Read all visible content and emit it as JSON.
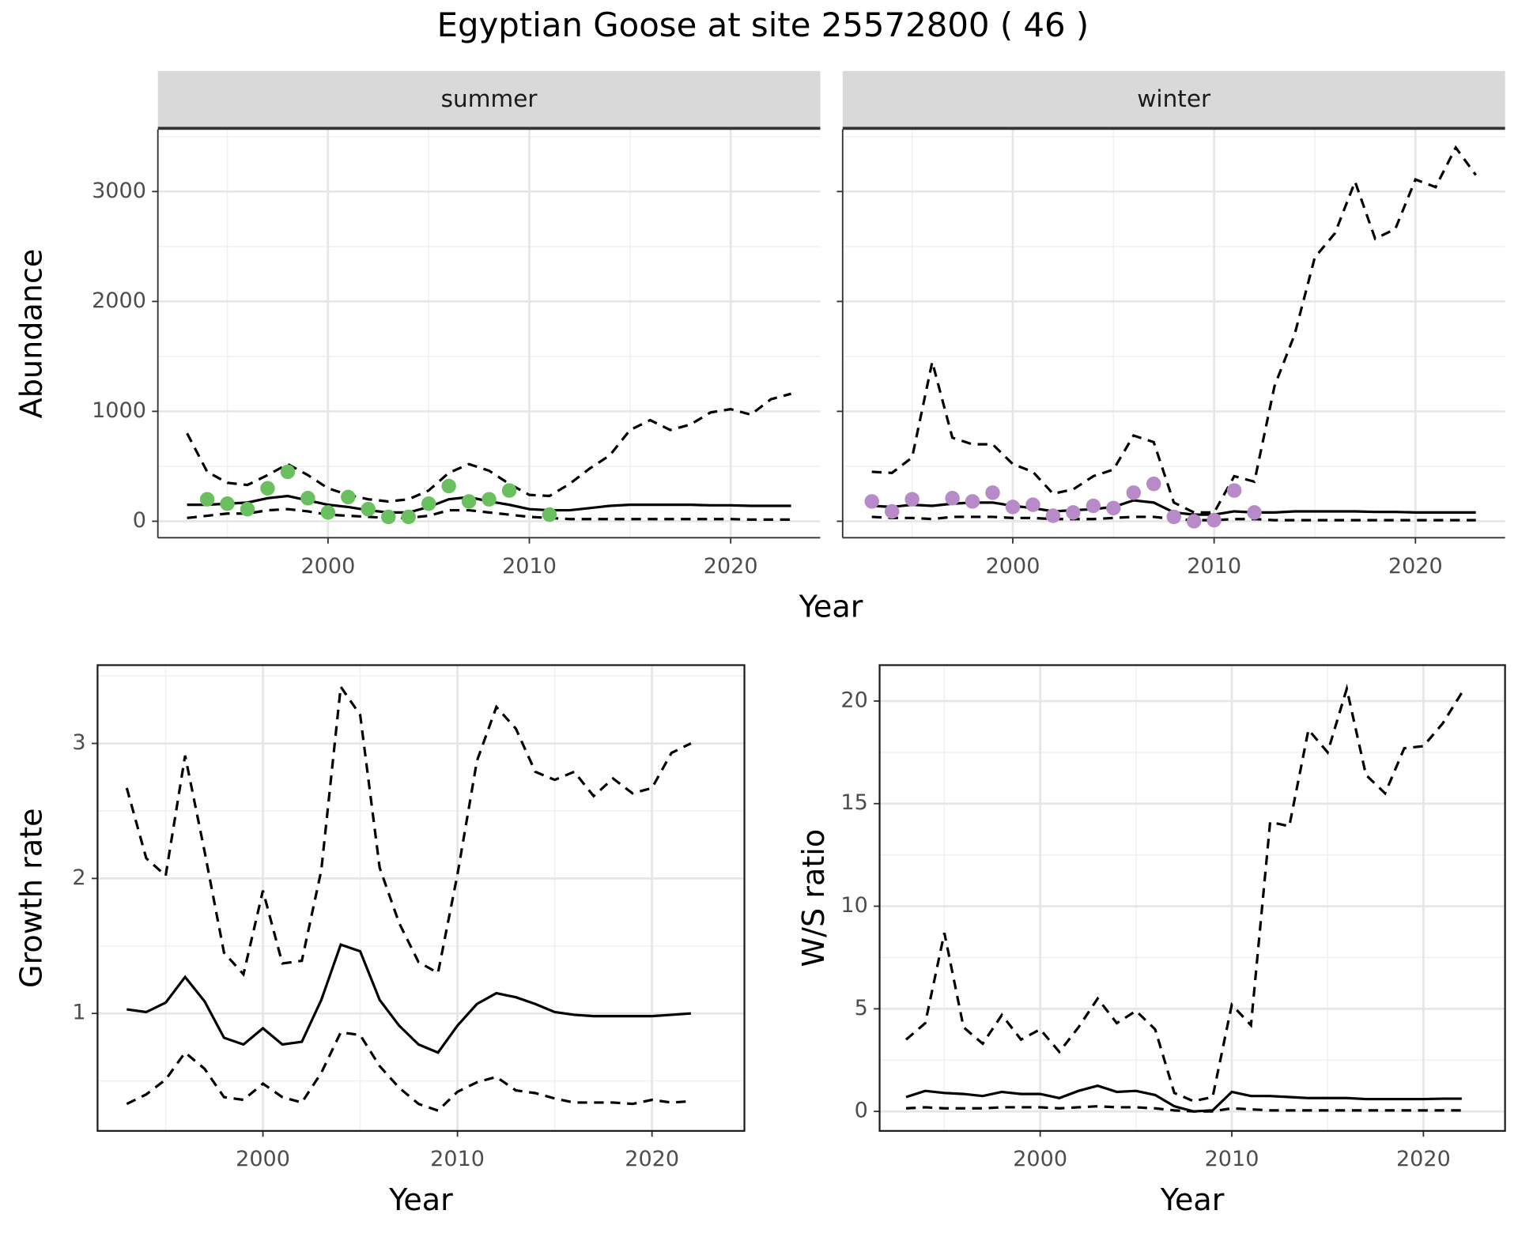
{
  "title": "Egyptian Goose at site 25572800 ( 46 )",
  "top_xlabel": "Year",
  "top_ylabel": "Abundance",
  "chart_data": [
    {
      "type": "line",
      "facet": "summer",
      "x": [
        1993,
        1994,
        1995,
        1996,
        1997,
        1998,
        1999,
        2000,
        2001,
        2002,
        2003,
        2004,
        2005,
        2006,
        2007,
        2008,
        2009,
        2010,
        2011,
        2012,
        2013,
        2014,
        2015,
        2016,
        2017,
        2018,
        2019,
        2020,
        2021,
        2022,
        2023
      ],
      "series": [
        {
          "style": "solid",
          "color": "#000000",
          "values": [
            150,
            150,
            160,
            170,
            210,
            230,
            190,
            150,
            130,
            100,
            80,
            80,
            130,
            200,
            220,
            180,
            150,
            110,
            100,
            100,
            120,
            140,
            150,
            150,
            150,
            150,
            145,
            145,
            140,
            140,
            140
          ]
        },
        {
          "style": "dashed",
          "color": "#000000",
          "values": [
            800,
            450,
            350,
            330,
            420,
            520,
            420,
            300,
            240,
            200,
            180,
            200,
            280,
            440,
            520,
            460,
            340,
            240,
            230,
            340,
            480,
            600,
            830,
            920,
            830,
            880,
            990,
            1020,
            970,
            1110,
            1160
          ]
        },
        {
          "style": "dashed",
          "color": "#000000",
          "values": [
            30,
            50,
            70,
            70,
            100,
            110,
            90,
            60,
            50,
            40,
            30,
            30,
            50,
            100,
            100,
            80,
            60,
            40,
            30,
            20,
            20,
            20,
            20,
            20,
            20,
            20,
            20,
            20,
            15,
            15,
            15
          ]
        }
      ],
      "points": {
        "color": "#6abf5e",
        "x": [
          1994,
          1995,
          1996,
          1997,
          1998,
          1999,
          2000,
          2001,
          2002,
          2003,
          2004,
          2005,
          2006,
          2007,
          2008,
          2009,
          2011
        ],
        "values": [
          200,
          160,
          110,
          300,
          450,
          210,
          80,
          220,
          110,
          40,
          40,
          160,
          320,
          180,
          200,
          280,
          60
        ]
      },
      "xlim": [
        1991.55,
        2024.45
      ],
      "ylim": [
        -150,
        3566
      ],
      "xticks": [
        2000,
        2010,
        2020
      ],
      "xminor": [
        1995,
        2005,
        2015
      ],
      "yticks": [
        0,
        1000,
        2000,
        3000
      ],
      "yminor": [
        500,
        1500,
        2500,
        3500
      ]
    },
    {
      "type": "line",
      "facet": "winter",
      "x": [
        1993,
        1994,
        1995,
        1996,
        1997,
        1998,
        1999,
        2000,
        2001,
        2002,
        2003,
        2004,
        2005,
        2006,
        2007,
        2008,
        2009,
        2010,
        2011,
        2012,
        2013,
        2014,
        2015,
        2016,
        2017,
        2018,
        2019,
        2020,
        2021,
        2022,
        2023
      ],
      "series": [
        {
          "style": "solid",
          "color": "#000000",
          "values": [
            140,
            130,
            150,
            140,
            160,
            170,
            170,
            140,
            120,
            90,
            100,
            110,
            130,
            190,
            170,
            80,
            60,
            60,
            90,
            80,
            80,
            90,
            90,
            90,
            90,
            85,
            85,
            80,
            80,
            80,
            80
          ]
        },
        {
          "style": "dashed",
          "color": "#000000",
          "values": [
            450,
            440,
            580,
            1450,
            760,
            700,
            700,
            520,
            450,
            250,
            290,
            410,
            470,
            780,
            720,
            170,
            80,
            80,
            410,
            360,
            1230,
            1700,
            2400,
            2620,
            3090,
            2570,
            2660,
            3110,
            3040,
            3400,
            3150
          ]
        },
        {
          "style": "dashed",
          "color": "#000000",
          "values": [
            40,
            30,
            30,
            20,
            40,
            40,
            40,
            30,
            30,
            20,
            20,
            20,
            30,
            40,
            40,
            20,
            10,
            10,
            20,
            20,
            10,
            10,
            10,
            10,
            10,
            10,
            10,
            10,
            10,
            10,
            10
          ]
        }
      ],
      "points": {
        "color": "#b68bc8",
        "x": [
          1993,
          1994,
          1995,
          1997,
          1998,
          1999,
          2000,
          2001,
          2002,
          2003,
          2004,
          2005,
          2006,
          2007,
          2008,
          2009,
          2010,
          2011,
          2012
        ],
        "values": [
          180,
          90,
          200,
          210,
          180,
          260,
          130,
          150,
          50,
          80,
          140,
          120,
          260,
          340,
          40,
          0,
          10,
          280,
          80
        ]
      },
      "xlim": [
        1991.55,
        2024.45
      ],
      "ylim": [
        -150,
        3566
      ],
      "xticks": [
        2000,
        2010,
        2020
      ],
      "xminor": [
        1995,
        2005,
        2015
      ],
      "yticks": [
        0,
        1000,
        2000,
        3000
      ],
      "yminor": [
        500,
        1500,
        2500,
        3500
      ]
    },
    {
      "type": "line",
      "xlabel": "Year",
      "ylabel": "Growth rate",
      "x": [
        1993,
        1994,
        1995,
        1996,
        1997,
        1998,
        1999,
        2000,
        2001,
        2002,
        2003,
        2004,
        2005,
        2006,
        2007,
        2008,
        2009,
        2010,
        2011,
        2012,
        2013,
        2014,
        2015,
        2016,
        2017,
        2018,
        2019,
        2020,
        2021,
        2022
      ],
      "series": [
        {
          "style": "solid",
          "color": "#000000",
          "values": [
            1.03,
            1.01,
            1.08,
            1.27,
            1.09,
            0.82,
            0.77,
            0.89,
            0.77,
            0.79,
            1.1,
            1.51,
            1.46,
            1.1,
            0.91,
            0.77,
            0.71,
            0.91,
            1.07,
            1.15,
            1.12,
            1.07,
            1.01,
            0.99,
            0.98,
            0.98,
            0.98,
            0.98,
            0.99,
            1.0
          ]
        },
        {
          "style": "dashed",
          "color": "#000000",
          "values": [
            2.67,
            2.15,
            2.02,
            2.91,
            2.2,
            1.45,
            1.29,
            1.91,
            1.37,
            1.39,
            2.06,
            3.42,
            3.21,
            2.08,
            1.67,
            1.38,
            1.3,
            2.03,
            2.87,
            3.27,
            3.11,
            2.79,
            2.73,
            2.79,
            2.61,
            2.74,
            2.63,
            2.67,
            2.93,
            3.0
          ]
        },
        {
          "style": "dashed",
          "color": "#000000",
          "values": [
            0.33,
            0.4,
            0.51,
            0.71,
            0.59,
            0.38,
            0.36,
            0.48,
            0.38,
            0.34,
            0.56,
            0.86,
            0.84,
            0.61,
            0.45,
            0.33,
            0.28,
            0.42,
            0.49,
            0.53,
            0.43,
            0.41,
            0.37,
            0.34,
            0.34,
            0.34,
            0.33,
            0.36,
            0.34,
            0.35
          ]
        }
      ],
      "xlim": [
        1991.5,
        2024.75
      ],
      "ylim": [
        0.13,
        3.58
      ],
      "xticks": [
        2000,
        2010,
        2020
      ],
      "xminor": [
        1995,
        2005,
        2015
      ],
      "yticks": [
        1,
        2,
        3
      ],
      "yminor": [
        0.5,
        1.5,
        2.5,
        3.5
      ]
    },
    {
      "type": "line",
      "xlabel": "Year",
      "ylabel": "W/S ratio",
      "x": [
        1993,
        1994,
        1995,
        1996,
        1997,
        1998,
        1999,
        2000,
        2001,
        2002,
        2003,
        2004,
        2005,
        2006,
        2007,
        2008,
        2009,
        2010,
        2011,
        2012,
        2013,
        2014,
        2015,
        2016,
        2017,
        2018,
        2019,
        2020,
        2021,
        2022
      ],
      "series": [
        {
          "style": "solid",
          "color": "#000000",
          "values": [
            0.7,
            1.0,
            0.9,
            0.85,
            0.75,
            0.95,
            0.85,
            0.85,
            0.65,
            1.0,
            1.25,
            0.95,
            1.0,
            0.8,
            0.25,
            0.0,
            0.05,
            0.95,
            0.75,
            0.75,
            0.7,
            0.65,
            0.65,
            0.65,
            0.6,
            0.6,
            0.6,
            0.6,
            0.62,
            0.62
          ]
        },
        {
          "style": "dashed",
          "color": "#000000",
          "values": [
            3.5,
            4.3,
            8.7,
            4.1,
            3.3,
            4.7,
            3.5,
            4.0,
            2.9,
            4.1,
            5.5,
            4.3,
            4.9,
            4.0,
            0.9,
            0.5,
            0.7,
            5.2,
            4.2,
            14.1,
            13.9,
            18.6,
            17.5,
            20.6,
            16.4,
            15.5,
            17.7,
            17.8,
            18.9,
            20.4
          ]
        },
        {
          "style": "dashed",
          "color": "#000000",
          "values": [
            0.15,
            0.2,
            0.15,
            0.15,
            0.15,
            0.2,
            0.2,
            0.2,
            0.15,
            0.2,
            0.25,
            0.2,
            0.2,
            0.15,
            0.05,
            0,
            0,
            0.15,
            0.1,
            0.05,
            0.05,
            0.05,
            0.05,
            0.05,
            0.05,
            0.05,
            0.05,
            0.05,
            0.05,
            0.05
          ]
        }
      ],
      "xlim": [
        1991.62,
        2024.26
      ],
      "ylim": [
        -0.95,
        21.75
      ],
      "xticks": [
        2000,
        2010,
        2020
      ],
      "xminor": [
        1995,
        2005,
        2015
      ],
      "yticks": [
        0,
        5,
        10,
        15,
        20
      ],
      "yminor": [
        2.5,
        7.5,
        12.5,
        17.5
      ]
    }
  ]
}
